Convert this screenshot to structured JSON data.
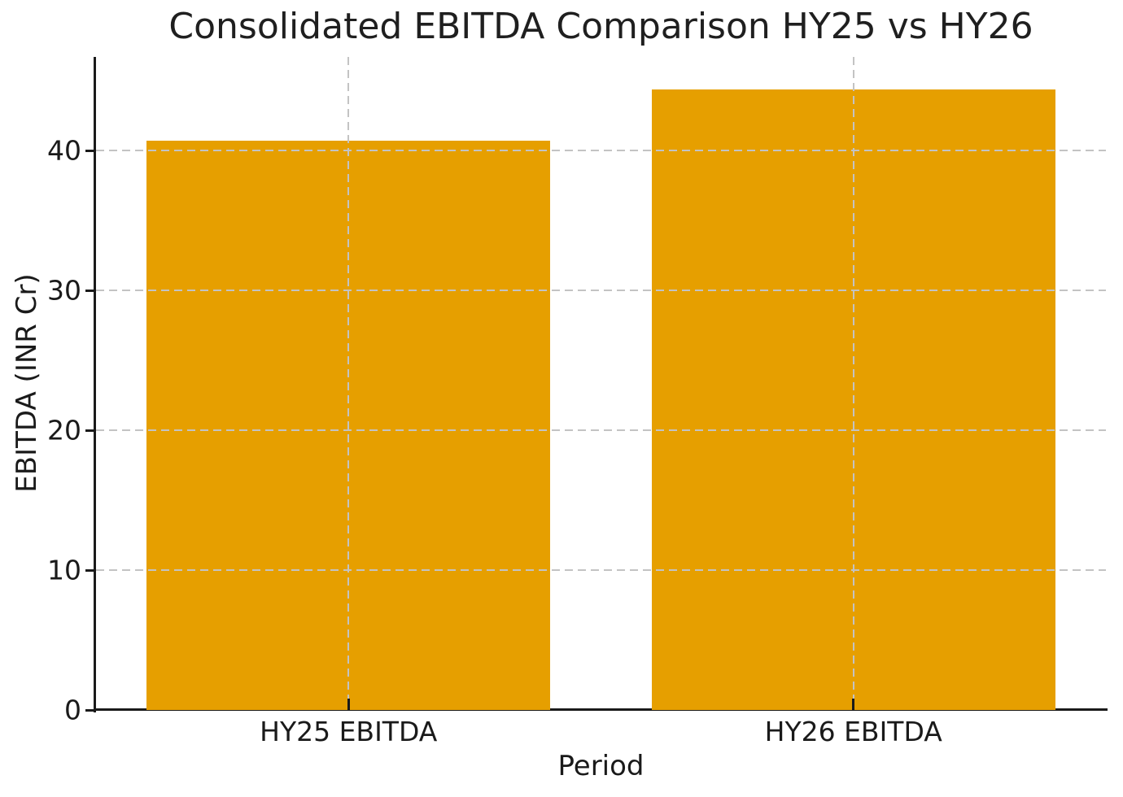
{
  "chart_data": {
    "type": "bar",
    "title": "Consolidated EBITDA Comparison HY25 vs HY26",
    "categories": [
      "HY25 EBITDA",
      "HY26 EBITDA"
    ],
    "values": [
      40.7,
      44.4
    ],
    "xlabel": "Period",
    "ylabel": "EBITDA (INR Cr)",
    "ylim": [
      0,
      46.7
    ],
    "yticks": [
      0,
      10,
      20,
      30,
      40
    ],
    "bar_width_fraction": 0.8,
    "bar_color": "#E69F00",
    "grid": true,
    "grid_style": "dashed",
    "grid_color": "#c3c3c3",
    "axis_color": "#1a1a1a",
    "text_color": "#1a1a1a",
    "background_color": "#ffffff",
    "legend": false
  }
}
